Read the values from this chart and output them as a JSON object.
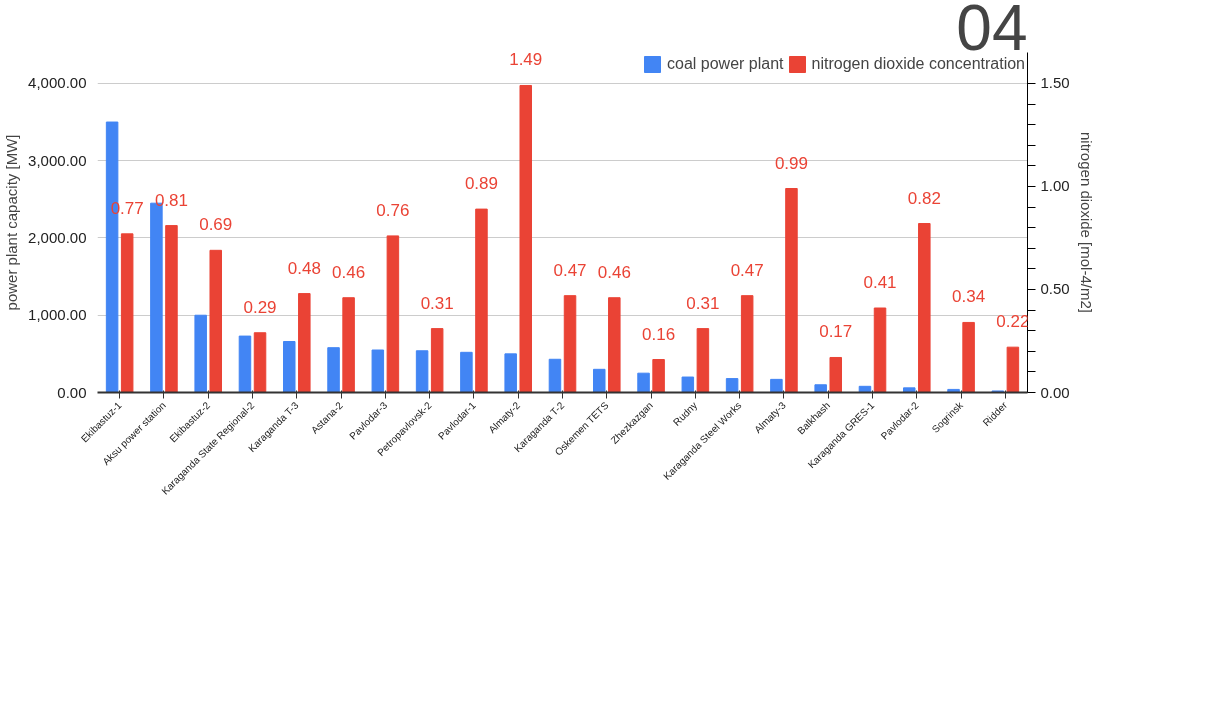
{
  "chart_data": {
    "type": "bar",
    "categories": [
      "Ekibastuz-1",
      "Aksu power station",
      "Ekibastuz-2",
      "Karaganda State Regional-2",
      "Karaganda T-3",
      "Astana-2",
      "Pavlodar-3",
      "Petropavlovsk-2",
      "Pavlodar-1",
      "Almaty-2",
      "Karaganda T-2",
      "Oskemen TETS",
      "Zhezkazgan",
      "Rudny",
      "Karaganda Steel Works",
      "Almaty-3",
      "Balkhash",
      "Karaganda GRES-1",
      "Pavlodar-2",
      "Sogrinsk",
      "Ridder"
    ],
    "series": [
      {
        "name": "coal power plant",
        "color": "#4285f4",
        "values": [
          3500,
          2450,
          1000,
          730,
          660,
          580,
          550,
          540,
          520,
          500,
          430,
          300,
          250,
          200,
          180,
          170,
          100,
          80,
          60,
          40,
          20
        ]
      },
      {
        "name": "nitrogen dioxide concentration",
        "color": "#ea4335",
        "axis": "y2",
        "values": [
          0.77,
          0.81,
          0.69,
          0.29,
          0.48,
          0.46,
          0.76,
          0.31,
          0.89,
          1.49,
          0.47,
          0.46,
          0.16,
          0.31,
          0.47,
          0.99,
          0.17,
          0.41,
          0.82,
          0.34,
          0.22
        ],
        "value_labels": [
          "0.77",
          "0.81",
          "0.69",
          "0.29",
          "0.48",
          "0.46",
          "0.76",
          "0.31",
          "0.89",
          "1.49",
          "0.47",
          "0.46",
          "0.16",
          "0.31",
          "0.47",
          "0.99",
          "0.17",
          "0.41",
          "0.82",
          "0.34",
          "0.22"
        ]
      }
    ],
    "ylabel": "power plant capacity [MW]",
    "y2label": "nitrogen dioxide [mol-4/m2]",
    "ylim": [
      0,
      4400
    ],
    "yticks": [
      {
        "value": 0,
        "label": "0.00"
      },
      {
        "value": 1000,
        "label": "1,000.00"
      },
      {
        "value": 2000,
        "label": "2,000.00"
      },
      {
        "value": 3000,
        "label": "3,000.00"
      },
      {
        "value": 4000,
        "label": "4,000.00"
      }
    ],
    "y2lim": [
      0,
      1.65
    ],
    "y2ticks": [
      {
        "value": 0,
        "label": "0.00"
      },
      {
        "value": 0.1,
        "label": null
      },
      {
        "value": 0.2,
        "label": null
      },
      {
        "value": 0.3,
        "label": null
      },
      {
        "value": 0.4,
        "label": null
      },
      {
        "value": 0.5,
        "label": "0.50"
      },
      {
        "value": 0.6,
        "label": null
      },
      {
        "value": 0.7,
        "label": null
      },
      {
        "value": 0.8,
        "label": null
      },
      {
        "value": 0.9,
        "label": null
      },
      {
        "value": 1.0,
        "label": "1.00"
      },
      {
        "value": 1.1,
        "label": null
      },
      {
        "value": 1.2,
        "label": null
      },
      {
        "value": 1.3,
        "label": null
      },
      {
        "value": 1.4,
        "label": null
      },
      {
        "value": 1.5,
        "label": "1.50"
      }
    ],
    "grid": "y",
    "legend": "top right",
    "annotations": [
      "04"
    ]
  }
}
